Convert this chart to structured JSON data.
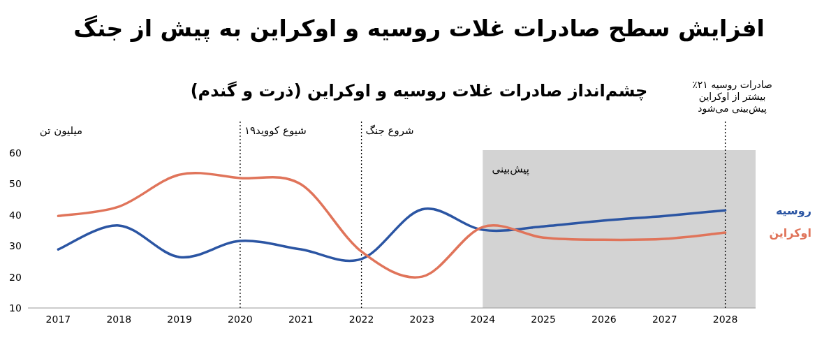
{
  "chart_data": {
    "type": "line",
    "title": "افزایش سطح صادرات غلات روسیه و اوکراین به پیش از جنگ",
    "subtitle": "چشم‌انداز صادرات غلات روسیه و اوکراین (ذرت و گندم)",
    "ylabel": "میلیون تن",
    "x": [
      2017,
      2018,
      2019,
      2020,
      2021,
      2022,
      2023,
      2024,
      2025,
      2026,
      2027,
      2028
    ],
    "series": [
      {
        "name": "روسیه",
        "color": "#2b55a3",
        "values": [
          28.9,
          36.6,
          26.4,
          31.6,
          28.9,
          25.8,
          41.8,
          35.2,
          36.3,
          38.2,
          39.7,
          41.5
        ]
      },
      {
        "name": "اوکراین",
        "color": "#e0745a",
        "values": [
          39.7,
          42.7,
          53,
          51.9,
          49.9,
          28.2,
          20.1,
          36.1,
          32.7,
          32,
          32.3,
          34.3
        ]
      }
    ],
    "xlim": [
      2016.5,
      2028.5
    ],
    "ylim": [
      10,
      60
    ],
    "xticks": [
      2017,
      2018,
      2019,
      2020,
      2021,
      2022,
      2023,
      2024,
      2025,
      2026,
      2027,
      2028
    ],
    "yticks": [
      10,
      20,
      30,
      40,
      50,
      60
    ],
    "ref_lines": [
      {
        "axis": "x",
        "value": 2020,
        "label": "شیوع کووید۱۹",
        "line_style": "dotted",
        "color": "#000000"
      },
      {
        "axis": "x",
        "value": 2022,
        "label": "شروع جنگ",
        "line_style": "dotted",
        "color": "#000000"
      },
      {
        "axis": "x",
        "value": 2028,
        "label": "صادرات روسیه ۲۱٪ بیشتر از اوکراین پیش‌بینی می‌شود",
        "line_style": "dotted",
        "color": "#000000"
      }
    ],
    "bands": [
      {
        "axis": "x",
        "from": 2024,
        "to": 2028.5,
        "label": "پیش‌بینی",
        "color": "#d3d3d3"
      }
    ],
    "legend": "right",
    "grid": false,
    "marker": "none",
    "line_style": "solid"
  }
}
